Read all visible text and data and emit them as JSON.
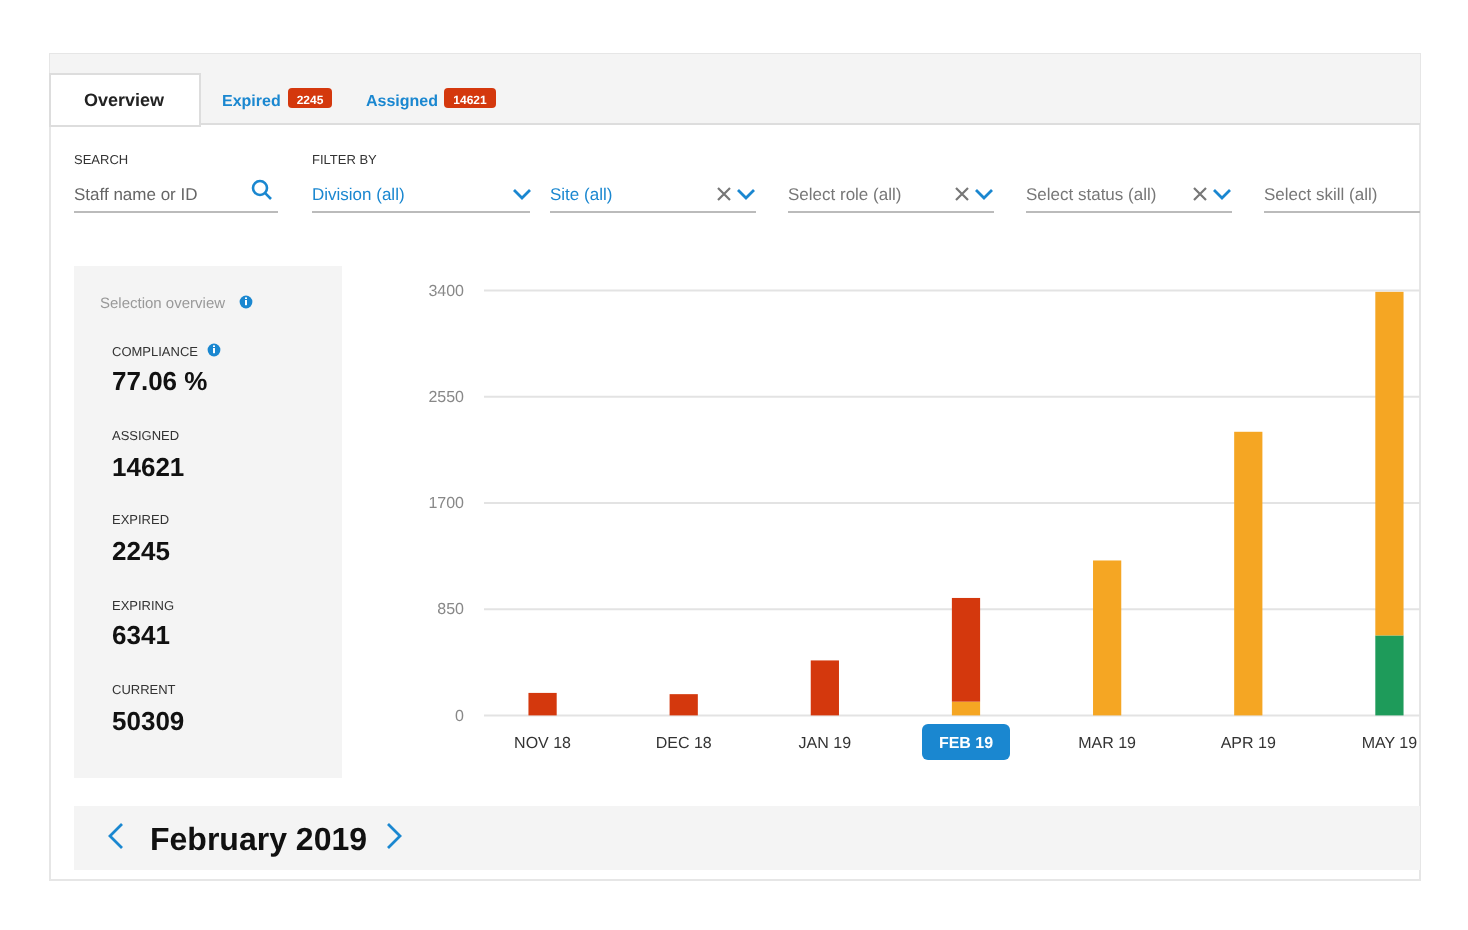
{
  "chart_data": {
    "type": "bar",
    "stacked": true,
    "categories": [
      "NOV 18",
      "DEC 18",
      "JAN 19",
      "FEB 19",
      "MAR 19",
      "APR 19",
      "MAY 19"
    ],
    "series": [
      {
        "color": "#1e9b5a",
        "values": [
          null,
          null,
          null,
          null,
          null,
          null,
          640
        ]
      },
      {
        "color": "#f5a623",
        "values": [
          null,
          null,
          null,
          110,
          1240,
          2270,
          2750
        ]
      },
      {
        "color": "#d4380d",
        "values": [
          180,
          170,
          440,
          830,
          null,
          null,
          null
        ]
      }
    ],
    "ylim": [
      0,
      3400
    ],
    "yticks": [
      0,
      850,
      1700,
      2550,
      3400
    ],
    "grid": "y",
    "annotations": [
      "Overview",
      "Expired",
      "2245",
      "Assigned",
      "14621",
      "SEARCH",
      "Staff name or ID",
      "FILTER BY",
      "Division (all)",
      "Site (all)",
      "Select role (all)",
      "Select status (all)",
      "Select skill (all)",
      "Selection overview",
      "COMPLIANCE",
      "77.06 %",
      "ASSIGNED",
      "14621",
      "EXPIRED",
      "2245",
      "EXPIRING",
      "6341",
      "CURRENT",
      "50309",
      "February 2019"
    ]
  }
}
